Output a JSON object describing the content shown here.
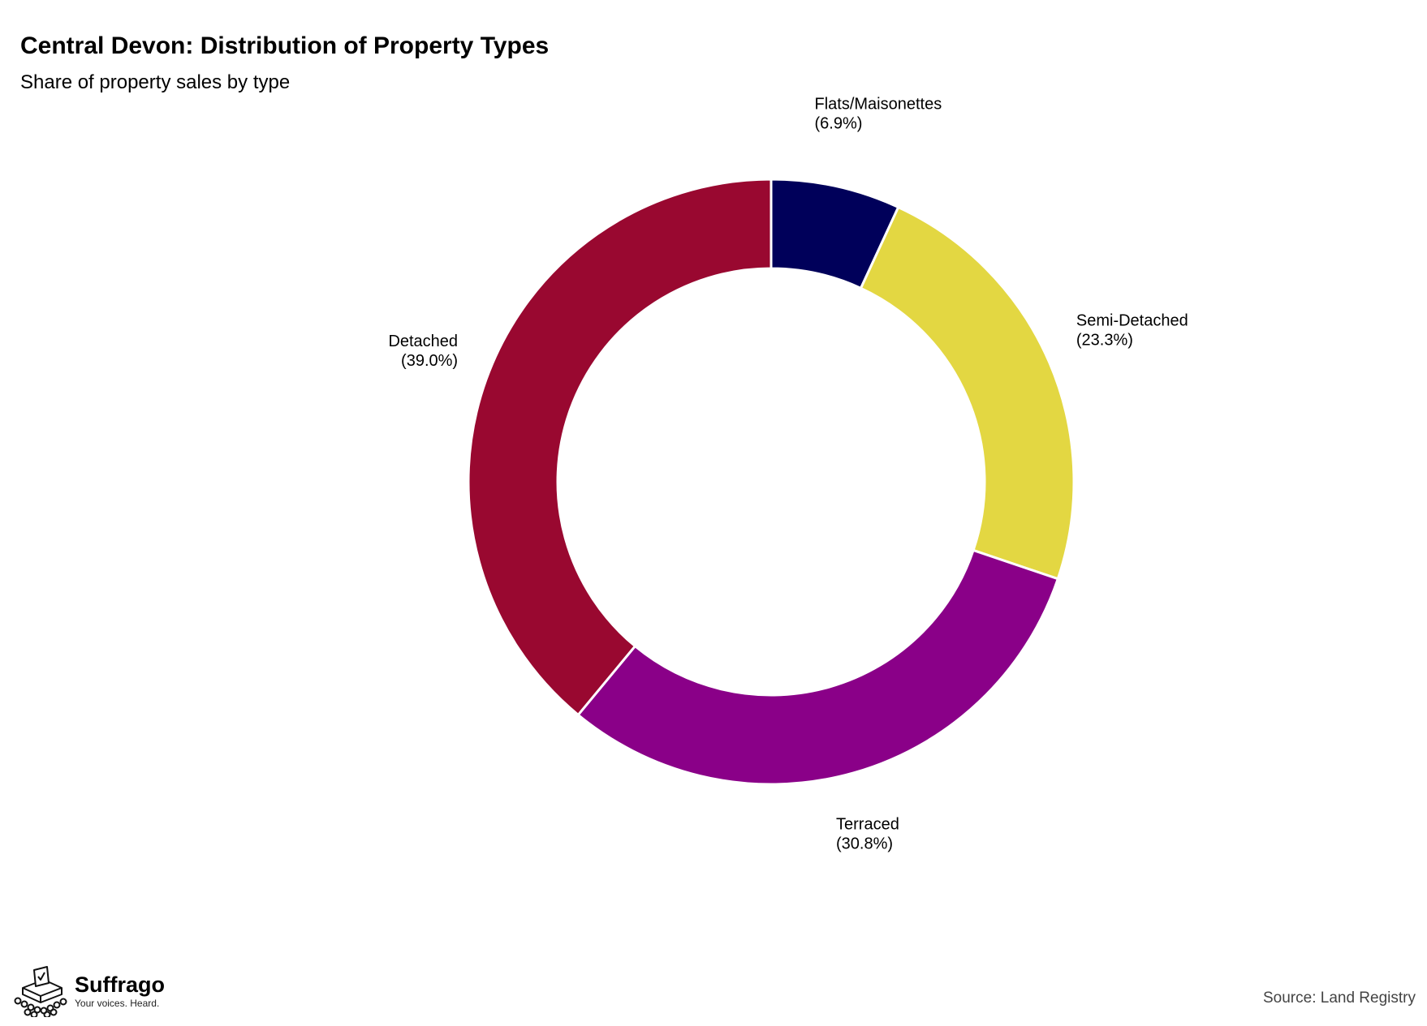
{
  "chart_data": {
    "type": "pie",
    "title": "Central Devon: Distribution of Property Types",
    "subtitle": "Share of property sales by type",
    "donut": true,
    "start_angle_deg": 0,
    "direction": "clockwise",
    "slices": [
      {
        "label": "Flats/Maisonettes",
        "value": 6.9,
        "value_label": "(6.9%)",
        "color": "#00005a"
      },
      {
        "label": "Semi-Detached",
        "value": 23.3,
        "value_label": "(23.3%)",
        "color": "#e3d742"
      },
      {
        "label": "Terraced",
        "value": 30.8,
        "value_label": "(30.8%)",
        "color": "#8a0088"
      },
      {
        "label": "Detached",
        "value": 39.0,
        "value_label": "(39.0%)",
        "color": "#990830"
      }
    ]
  },
  "footer": {
    "logo_name": "Suffrago",
    "logo_tagline": "Your voices. Heard.",
    "logo_icon": "ballot-box-icon",
    "source": "Source: Land Registry"
  }
}
